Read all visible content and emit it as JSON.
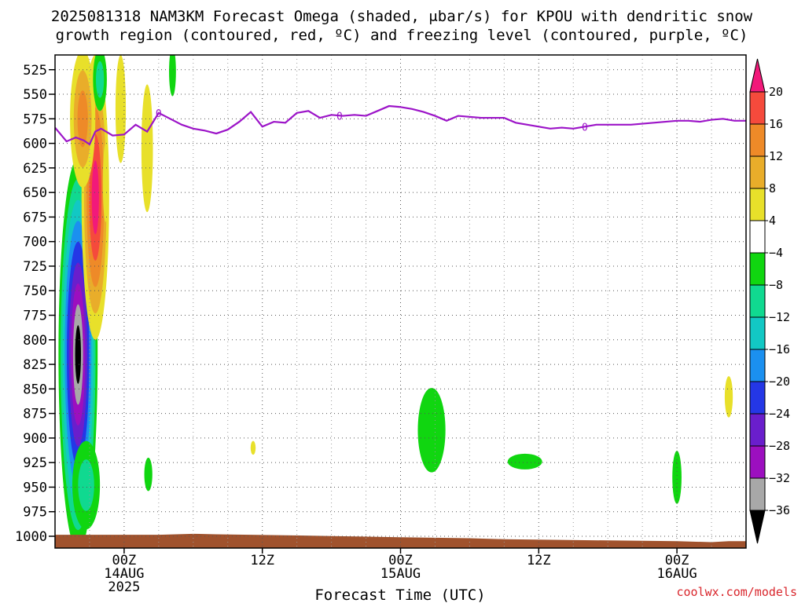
{
  "chart_data": {
    "type": "time-height contour",
    "title_line1": "2025081318 NAM3KM Forecast Omega (shaded, μbar/s) for KPOU with dendritic snow",
    "title_line2": "growth region (contoured, red, ºC) and freezing level (contoured, purple, ºC)",
    "xlabel": "Forecast Time (UTC)",
    "credit": "coolwx.com/models",
    "y_axis": {
      "inverted": true,
      "range": [
        510,
        1012
      ],
      "ticks": [
        525,
        550,
        575,
        600,
        625,
        650,
        675,
        700,
        725,
        750,
        775,
        800,
        825,
        850,
        875,
        900,
        925,
        950,
        975,
        1000
      ],
      "grid": true
    },
    "x_axis": {
      "range_hours": [
        -6,
        54
      ],
      "ticks": [
        {
          "hour": 0,
          "line1": "00Z",
          "line2": "14AUG",
          "line3": "2025"
        },
        {
          "hour": 12,
          "line1": "12Z",
          "line2": "",
          "line3": ""
        },
        {
          "hour": 24,
          "line1": "00Z",
          "line2": "15AUG",
          "line3": ""
        },
        {
          "hour": 36,
          "line1": "12Z",
          "line2": "",
          "line3": ""
        },
        {
          "hour": 48,
          "line1": "00Z",
          "line2": "16AUG",
          "line3": ""
        }
      ],
      "grid": true
    },
    "colorbar": {
      "bins": [
        {
          "color": "#000000",
          "label": "-36"
        },
        {
          "color": "#a8a8a8",
          "label": "-32"
        },
        {
          "color": "#9c0fbf",
          "label": "-28"
        },
        {
          "color": "#6a1ecc",
          "label": "-24"
        },
        {
          "color": "#2437e6",
          "label": "-20"
        },
        {
          "color": "#1b90f0",
          "label": "-16"
        },
        {
          "color": "#12c8c4",
          "label": "-12"
        },
        {
          "color": "#10d990",
          "label": "-8"
        },
        {
          "color": "#10d610",
          "label": "-4"
        },
        {
          "color": "#ffffff",
          "label": "4"
        },
        {
          "color": "#e8e02a",
          "label": "8"
        },
        {
          "color": "#e9ad2a",
          "label": "12"
        },
        {
          "color": "#ee8a28",
          "label": "16"
        },
        {
          "color": "#f54a3c",
          "label": "20"
        },
        {
          "color": "#f2197a",
          "label": ""
        }
      ]
    },
    "freezing_level": {
      "color": "#9c14c8",
      "label": "0",
      "label_hours": [
        3,
        18.7,
        40
      ],
      "points": [
        [
          -6,
          584
        ],
        [
          -5,
          598
        ],
        [
          -4.2,
          594
        ],
        [
          -3.5,
          597
        ],
        [
          -3,
          601
        ],
        [
          -2.5,
          588
        ],
        [
          -2,
          585
        ],
        [
          -1,
          592
        ],
        [
          0,
          591
        ],
        [
          1,
          581
        ],
        [
          2,
          588
        ],
        [
          3,
          569
        ],
        [
          4,
          575
        ],
        [
          5,
          581
        ],
        [
          6,
          585
        ],
        [
          7,
          587
        ],
        [
          8,
          590
        ],
        [
          9,
          586
        ],
        [
          10,
          578
        ],
        [
          11,
          568
        ],
        [
          12,
          583
        ],
        [
          13,
          578
        ],
        [
          14,
          579
        ],
        [
          15,
          569
        ],
        [
          16,
          567
        ],
        [
          17,
          574
        ],
        [
          18,
          571
        ],
        [
          19,
          572
        ],
        [
          20,
          571
        ],
        [
          21,
          572
        ],
        [
          22,
          567
        ],
        [
          23,
          562
        ],
        [
          24,
          563
        ],
        [
          25,
          565
        ],
        [
          26,
          568
        ],
        [
          27,
          572
        ],
        [
          28,
          577
        ],
        [
          29,
          572
        ],
        [
          30,
          573
        ],
        [
          31,
          574
        ],
        [
          32,
          574
        ],
        [
          33,
          574
        ],
        [
          34,
          579
        ],
        [
          35,
          581
        ],
        [
          36,
          583
        ],
        [
          37,
          585
        ],
        [
          38,
          584
        ],
        [
          39,
          585
        ],
        [
          40,
          583
        ],
        [
          41,
          581
        ],
        [
          42,
          581
        ],
        [
          43,
          581
        ],
        [
          44,
          581
        ],
        [
          45,
          580
        ],
        [
          46,
          579
        ],
        [
          47,
          578
        ],
        [
          48,
          577
        ],
        [
          49,
          577
        ],
        [
          50,
          578
        ],
        [
          51,
          576
        ],
        [
          52,
          575
        ],
        [
          53,
          577
        ],
        [
          54,
          577
        ]
      ]
    },
    "surface_terrain_mb": [
      [
        -6,
        998.5
      ],
      [
        3,
        998.5
      ],
      [
        6,
        997.5
      ],
      [
        8,
        998
      ],
      [
        14,
        999
      ],
      [
        24,
        1001
      ],
      [
        30,
        1002
      ],
      [
        33,
        1003
      ],
      [
        40,
        1004
      ],
      [
        48,
        1005
      ],
      [
        51,
        1006
      ],
      [
        52.5,
        1005
      ],
      [
        54,
        1005
      ]
    ],
    "omega_features": [
      {
        "center_hour": -4,
        "center_mb": 815,
        "half_width_h": 1.7,
        "half_height_mb": 200,
        "levels": [
          "#10d610",
          "#10d990",
          "#12c8c4",
          "#1b90f0",
          "#2437e6",
          "#6a1ecc",
          "#9c0fbf",
          "#a8a8a8",
          "#000000"
        ]
      },
      {
        "center_hour": -2.5,
        "center_mb": 655,
        "half_width_h": 1.2,
        "half_height_mb": 145,
        "levels": [
          "#e8e02a",
          "#e9ad2a",
          "#ee8a28",
          "#f54a3c",
          "#f2197a"
        ]
      },
      {
        "center_hour": -3.6,
        "center_mb": 575,
        "half_width_h": 1.1,
        "half_height_mb": 70,
        "levels": [
          "#e8e02a",
          "#e9ad2a",
          "#ee8a28"
        ]
      },
      {
        "center_hour": -2.1,
        "center_mb": 535,
        "half_width_h": 0.6,
        "half_height_mb": 32,
        "levels": [
          "#10d610",
          "#10d990"
        ]
      },
      {
        "center_hour": -1.6,
        "center_mb": 640,
        "half_width_h": 0.25,
        "half_height_mb": 40,
        "levels": [
          "#e8e02a"
        ]
      },
      {
        "center_hour": -0.3,
        "center_mb": 565,
        "half_width_h": 0.45,
        "half_height_mb": 55,
        "levels": [
          "#e8e02a"
        ]
      },
      {
        "center_hour": 2,
        "center_mb": 605,
        "half_width_h": 0.5,
        "half_height_mb": 65,
        "levels": [
          "#e8e02a"
        ]
      },
      {
        "center_hour": 4.2,
        "center_mb": 527,
        "half_width_h": 0.3,
        "half_height_mb": 25,
        "levels": [
          "#10d610"
        ]
      },
      {
        "center_hour": -3.3,
        "center_mb": 948,
        "half_width_h": 1.2,
        "half_height_mb": 45,
        "levels": [
          "#10d610",
          "#10d990"
        ]
      },
      {
        "center_hour": 2.1,
        "center_mb": 937,
        "half_width_h": 0.35,
        "half_height_mb": 17,
        "levels": [
          "#10d610"
        ]
      },
      {
        "center_hour": 11.2,
        "center_mb": 910,
        "half_width_h": 0.22,
        "half_height_mb": 7,
        "levels": [
          "#e8e02a"
        ]
      },
      {
        "center_hour": 26.7,
        "center_mb": 892,
        "half_width_h": 1.2,
        "half_height_mb": 43,
        "levels": [
          "#10d610"
        ]
      },
      {
        "center_hour": 34.8,
        "center_mb": 924,
        "half_width_h": 1.5,
        "half_height_mb": 8,
        "levels": [
          "#10d610"
        ]
      },
      {
        "center_hour": 48,
        "center_mb": 940,
        "half_width_h": 0.4,
        "half_height_mb": 27,
        "levels": [
          "#10d610"
        ]
      },
      {
        "center_hour": 52.5,
        "center_mb": 858,
        "half_width_h": 0.35,
        "half_height_mb": 21,
        "levels": [
          "#e8e02a"
        ]
      }
    ]
  }
}
